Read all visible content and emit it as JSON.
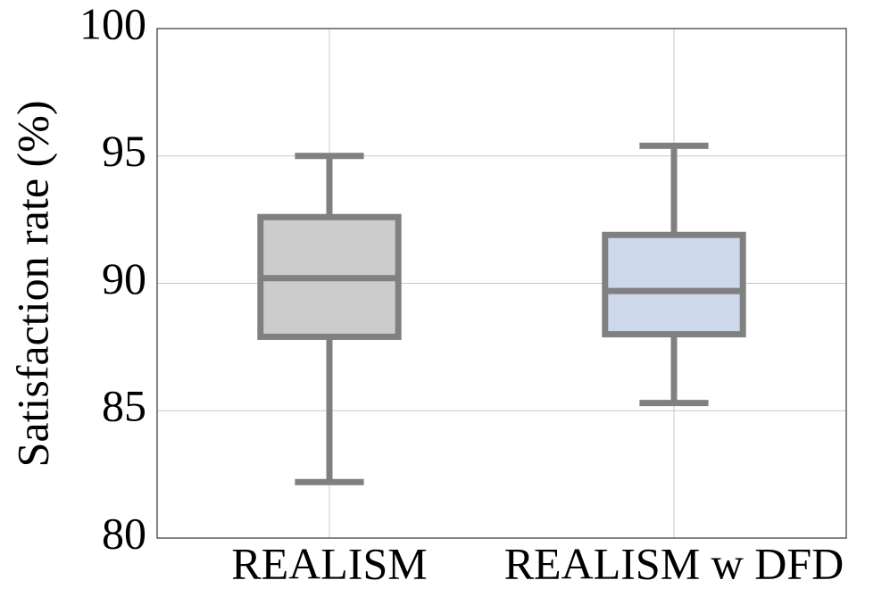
{
  "chart_data": {
    "type": "box",
    "y_label": "Satisfaction rate (%)",
    "categories": [
      "REALISM",
      "REALISM w DFD"
    ],
    "boxes": [
      {
        "whisker_low": 82.2,
        "q1": 87.9,
        "median": 90.2,
        "q3": 92.6,
        "whisker_high": 95.0,
        "color": "#cccccc"
      },
      {
        "whisker_low": 85.3,
        "q1": 88.0,
        "median": 89.7,
        "q3": 91.9,
        "whisker_high": 95.4,
        "color": "#cdd8ea"
      }
    ],
    "line_color": "#808080",
    "ylim": [
      80,
      100
    ],
    "yticks": [
      80,
      85,
      90,
      95,
      100
    ],
    "grid": true
  }
}
